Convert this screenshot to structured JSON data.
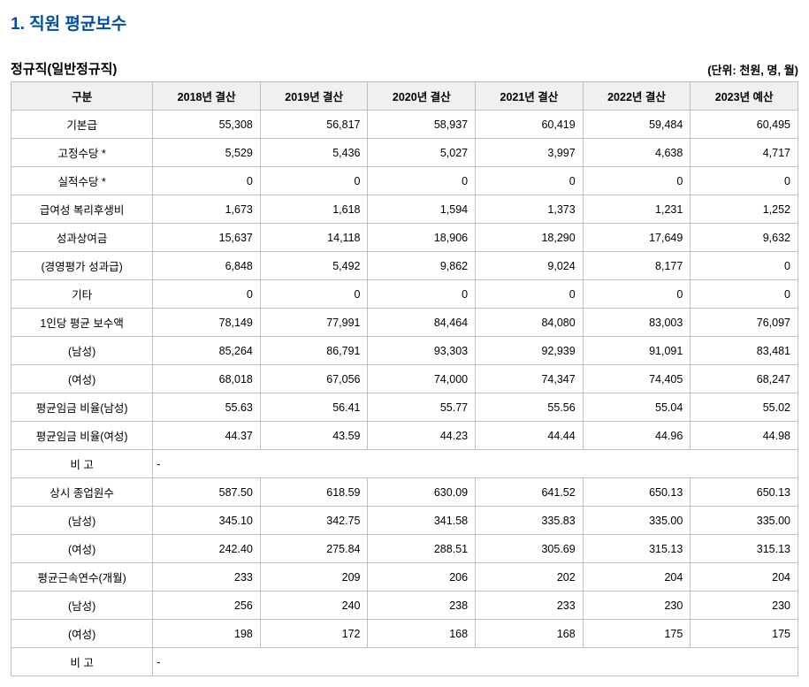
{
  "title": "1. 직원 평균보수",
  "subtitle": "정규직(일반정규직)",
  "unit": "(단위: 천원, 명, 월)",
  "columns": [
    "구분",
    "2018년 결산",
    "2019년 결산",
    "2020년 결산",
    "2021년 결산",
    "2022년 결산",
    "2023년 예산"
  ],
  "rows": [
    {
      "label": "기본급",
      "values": [
        "55,308",
        "56,817",
        "58,937",
        "60,419",
        "59,484",
        "60,495"
      ]
    },
    {
      "label": "고정수당 *",
      "values": [
        "5,529",
        "5,436",
        "5,027",
        "3,997",
        "4,638",
        "4,717"
      ]
    },
    {
      "label": "실적수당 *",
      "values": [
        "0",
        "0",
        "0",
        "0",
        "0",
        "0"
      ]
    },
    {
      "label": "급여성 복리후생비",
      "values": [
        "1,673",
        "1,618",
        "1,594",
        "1,373",
        "1,231",
        "1,252"
      ]
    },
    {
      "label": "성과상여금",
      "values": [
        "15,637",
        "14,118",
        "18,906",
        "18,290",
        "17,649",
        "9,632"
      ]
    },
    {
      "label": "(경영평가 성과급)",
      "values": [
        "6,848",
        "5,492",
        "9,862",
        "9,024",
        "8,177",
        "0"
      ]
    },
    {
      "label": "기타",
      "values": [
        "0",
        "0",
        "0",
        "0",
        "0",
        "0"
      ]
    },
    {
      "label": "1인당 평균 보수액",
      "values": [
        "78,149",
        "77,991",
        "84,464",
        "84,080",
        "83,003",
        "76,097"
      ]
    },
    {
      "label": "(남성)",
      "values": [
        "85,264",
        "86,791",
        "93,303",
        "92,939",
        "91,091",
        "83,481"
      ]
    },
    {
      "label": "(여성)",
      "values": [
        "68,018",
        "67,056",
        "74,000",
        "74,347",
        "74,405",
        "68,247"
      ]
    },
    {
      "label": "평균임금 비율(남성)",
      "values": [
        "55.63",
        "56.41",
        "55.77",
        "55.56",
        "55.04",
        "55.02"
      ]
    },
    {
      "label": "평균임금 비율(여성)",
      "values": [
        "44.37",
        "43.59",
        "44.23",
        "44.44",
        "44.96",
        "44.98"
      ]
    },
    {
      "label": "비 고",
      "span": true,
      "note": "-"
    },
    {
      "label": "상시 종업원수",
      "values": [
        "587.50",
        "618.59",
        "630.09",
        "641.52",
        "650.13",
        "650.13"
      ]
    },
    {
      "label": "(남성)",
      "values": [
        "345.10",
        "342.75",
        "341.58",
        "335.83",
        "335.00",
        "335.00"
      ]
    },
    {
      "label": "(여성)",
      "values": [
        "242.40",
        "275.84",
        "288.51",
        "305.69",
        "315.13",
        "315.13"
      ]
    },
    {
      "label": "평균근속연수(개월)",
      "values": [
        "233",
        "209",
        "206",
        "202",
        "204",
        "204"
      ]
    },
    {
      "label": "(남성)",
      "values": [
        "256",
        "240",
        "238",
        "233",
        "230",
        "230"
      ]
    },
    {
      "label": "(여성)",
      "values": [
        "198",
        "172",
        "168",
        "168",
        "175",
        "175"
      ]
    },
    {
      "label": "비 고",
      "span": true,
      "note": "-"
    }
  ]
}
